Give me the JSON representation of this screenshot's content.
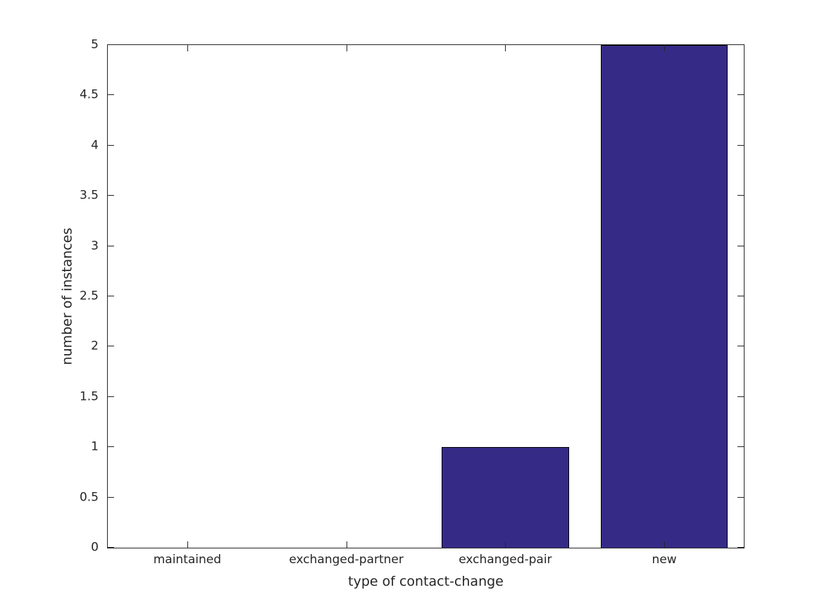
{
  "chart_data": {
    "type": "bar",
    "title": "",
    "categories": [
      "maintained",
      "exchanged-partner",
      "exchanged-pair",
      "new"
    ],
    "values": [
      0,
      0,
      1,
      5
    ],
    "xlabel": "type of contact-change",
    "ylabel": "number of instances",
    "ylim": [
      0,
      5
    ],
    "ytick_step": 0.5,
    "ytick_labels": [
      "0",
      "0.5",
      "1",
      "1.5",
      "2",
      "2.5",
      "3",
      "3.5",
      "4",
      "4.5",
      "5"
    ],
    "bar_width_frac": 0.8,
    "grid": false,
    "legend": null,
    "colors": {
      "bar_fill": "#352B87",
      "bar_edge": "#000000",
      "axis": "#262626",
      "text": "#262626",
      "background": "#ffffff"
    },
    "layout": {
      "box": true,
      "ticks_mirrored": true,
      "tick_direction": "in"
    }
  }
}
